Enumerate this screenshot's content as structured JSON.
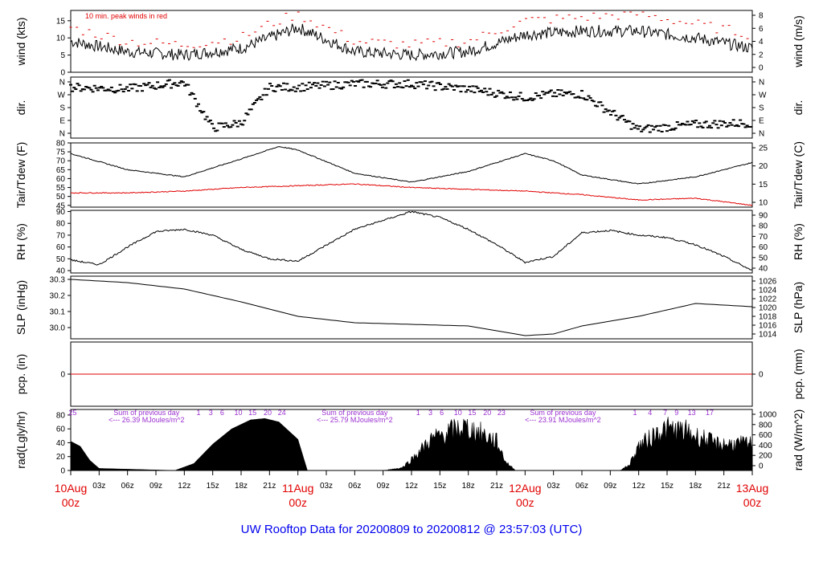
{
  "footer_title": "UW Rooftop Data for 20200809  to  20200812 @ 23:57:03  (UTC)",
  "colors": {
    "red": "#e00000",
    "purple": "#9b30d0",
    "blue": "#0000ee",
    "black": "#000000"
  },
  "x_axis": {
    "minor_ticks": [
      "03z",
      "06z",
      "09z",
      "12z",
      "15z",
      "18z",
      "21z",
      "03z",
      "06z",
      "09z",
      "12z",
      "15z",
      "18z",
      "21z",
      "03z",
      "06z",
      "09z",
      "12z",
      "15z",
      "18z",
      "21z"
    ],
    "day_labels": [
      [
        "10Aug",
        "00z"
      ],
      [
        "11Aug",
        "00z"
      ],
      [
        "12Aug",
        "00z"
      ],
      [
        "13Aug",
        "00z"
      ]
    ]
  },
  "chart_data": [
    {
      "type": "line",
      "panel": "wind",
      "ylabel_left": "wind (kts)",
      "ylabel_right": "wind (m/s)",
      "left_ticks": [
        "0",
        "5",
        "10",
        "15"
      ],
      "right_ticks": [
        "0",
        "2",
        "4",
        "6",
        "8"
      ],
      "ylim": [
        0,
        18
      ],
      "annotation": "10 min. peak winds in red",
      "series": [
        {
          "name": "wind",
          "x": [
            0,
            6,
            12,
            15,
            18,
            21,
            24,
            30,
            36,
            42,
            48,
            54,
            60,
            66,
            72
          ],
          "y": [
            9,
            6,
            5,
            6,
            7,
            10,
            13,
            6,
            5,
            6,
            11,
            12,
            12,
            10,
            7
          ]
        },
        {
          "name": "10 min. peak winds",
          "x": [
            0,
            6,
            12,
            15,
            18,
            21,
            24,
            30,
            36,
            42,
            48,
            54,
            60,
            66,
            72
          ],
          "y": [
            13,
            9,
            8,
            9,
            10,
            14,
            17,
            9,
            8,
            9,
            15,
            16,
            17,
            14,
            11
          ]
        }
      ]
    },
    {
      "type": "scatter",
      "panel": "dir",
      "ylabel_left": "dir.",
      "ylabel_right": "dir.",
      "left_ticks": [
        "N",
        "E",
        "S",
        "W",
        "N"
      ],
      "right_ticks": [
        "N",
        "E",
        "S",
        "W",
        "N"
      ],
      "ylim": [
        0,
        360
      ],
      "series": [
        {
          "name": "dir",
          "x": [
            0,
            6,
            12,
            15,
            18,
            21,
            24,
            30,
            36,
            42,
            48,
            51,
            54,
            60,
            66,
            72
          ],
          "y": [
            300,
            290,
            330,
            60,
            90,
            300,
            300,
            320,
            320,
            290,
            240,
            260,
            260,
            50,
            80,
            90
          ]
        }
      ]
    },
    {
      "type": "line",
      "panel": "temp",
      "ylabel_left": "Tair/Tdew (F)",
      "ylabel_right": "Tair/Tdew (C)",
      "left_ticks": [
        "45",
        "50",
        "55",
        "60",
        "65",
        "70",
        "75",
        "80"
      ],
      "right_ticks": [
        "10",
        "15",
        "20",
        "25"
      ],
      "ylim": [
        44,
        80
      ],
      "series": [
        {
          "name": "Tair",
          "x": [
            0,
            6,
            12,
            18,
            22,
            24,
            30,
            36,
            42,
            48,
            51,
            54,
            60,
            66,
            72
          ],
          "y": [
            74,
            65,
            61,
            71,
            78,
            76,
            63,
            58,
            64,
            74,
            70,
            62,
            57,
            61,
            69
          ]
        },
        {
          "name": "Tdew",
          "x": [
            0,
            6,
            12,
            18,
            24,
            30,
            36,
            42,
            48,
            54,
            60,
            66,
            72
          ],
          "y": [
            52,
            52,
            53,
            55,
            56,
            57,
            55,
            54,
            53,
            51,
            48,
            49,
            45
          ]
        }
      ]
    },
    {
      "type": "line",
      "panel": "rh",
      "ylabel_left": "RH (%)",
      "ylabel_right": "RH (%)",
      "left_ticks": [
        "40",
        "50",
        "60",
        "70",
        "80",
        "90"
      ],
      "right_ticks": [
        "40",
        "50",
        "60",
        "70",
        "80",
        "90"
      ],
      "ylim": [
        38,
        91
      ],
      "series": [
        {
          "name": "RH",
          "x": [
            0,
            3,
            6,
            9,
            12,
            15,
            18,
            21,
            24,
            30,
            36,
            39,
            42,
            45,
            48,
            51,
            54,
            57,
            60,
            63,
            66,
            69,
            72
          ],
          "y": [
            49,
            45,
            60,
            73,
            75,
            70,
            58,
            50,
            48,
            75,
            90,
            85,
            75,
            62,
            47,
            52,
            72,
            74,
            70,
            68,
            62,
            52,
            40
          ]
        }
      ]
    },
    {
      "type": "line",
      "panel": "slp",
      "ylabel_left": "SLP (inHg)",
      "ylabel_right": "SLP (hPa)",
      "left_ticks": [
        "30.0",
        "30.1",
        "30.2",
        "30.3"
      ],
      "right_ticks": [
        "1014",
        "1016",
        "1018",
        "1020",
        "1022",
        "1024",
        "1026"
      ],
      "ylim": [
        29.93,
        30.32
      ],
      "series": [
        {
          "name": "SLP",
          "x": [
            0,
            6,
            12,
            18,
            24,
            30,
            36,
            42,
            48,
            51,
            54,
            60,
            66,
            72
          ],
          "y": [
            30.3,
            30.28,
            30.24,
            30.16,
            30.07,
            30.03,
            30.02,
            30.01,
            29.95,
            29.96,
            30.01,
            30.07,
            30.15,
            30.13
          ]
        }
      ]
    },
    {
      "type": "line",
      "panel": "pcp",
      "ylabel_left": "pcp. (in)",
      "ylabel_right": "pcp. (mm)",
      "left_ticks": [
        "0"
      ],
      "right_ticks": [
        "0"
      ],
      "ylim": [
        -1,
        1
      ],
      "series": [
        {
          "name": "pcp",
          "x": [
            0,
            72
          ],
          "y": [
            0,
            0
          ]
        }
      ]
    },
    {
      "type": "area",
      "panel": "rad",
      "ylabel_left": "rad(Lgly/hr)",
      "ylabel_right": "rad (W/m^2)",
      "left_ticks": [
        "0",
        "20",
        "40",
        "60",
        "80"
      ],
      "right_ticks": [
        "0",
        "200",
        "400",
        "600",
        "800",
        "1000"
      ],
      "ylim": [
        0,
        88
      ],
      "annotations": [
        {
          "text": "25",
          "x": 0.2
        },
        {
          "text": "Sum of previous day",
          "x": 8
        },
        {
          "text": "<--- 26.39 MJoules/m^2",
          "x": 8
        },
        {
          "text": "1",
          "x": 13.5
        },
        {
          "text": "3",
          "x": 14.8
        },
        {
          "text": "6",
          "x": 16
        },
        {
          "text": "10",
          "x": 17.7
        },
        {
          "text": "15",
          "x": 19.2
        },
        {
          "text": "20",
          "x": 20.8
        },
        {
          "text": "24",
          "x": 22.3
        },
        {
          "text": "Sum of previous day",
          "x": 30
        },
        {
          "text": "<--- 25.79 MJoules/m^2",
          "x": 30
        },
        {
          "text": "1",
          "x": 36.7
        },
        {
          "text": "3",
          "x": 38
        },
        {
          "text": "6",
          "x": 39.2
        },
        {
          "text": "10",
          "x": 40.9
        },
        {
          "text": "15",
          "x": 42.4
        },
        {
          "text": "20",
          "x": 44
        },
        {
          "text": "23",
          "x": 45.5
        },
        {
          "text": "Sum of previous day",
          "x": 52
        },
        {
          "text": "<--- 23.91 MJoules/m^2",
          "x": 52
        },
        {
          "text": "1",
          "x": 59.6
        },
        {
          "text": "4",
          "x": 61.2
        },
        {
          "text": "7",
          "x": 62.8
        },
        {
          "text": "9",
          "x": 64
        },
        {
          "text": "13",
          "x": 65.6
        },
        {
          "text": "17",
          "x": 67.5
        }
      ],
      "series": [
        {
          "name": "rad",
          "x": [
            0,
            1,
            2,
            3,
            11,
            13,
            15,
            17,
            19,
            20.5,
            22,
            24,
            25,
            33,
            35,
            36,
            38,
            40,
            41.5,
            43,
            45,
            46,
            47,
            58,
            59,
            60,
            61,
            62,
            63,
            64,
            65,
            66,
            67,
            68
          ],
          "y": [
            42,
            35,
            15,
            3,
            0,
            10,
            38,
            60,
            73,
            75,
            70,
            45,
            0,
            0,
            5,
            20,
            55,
            70,
            78,
            70,
            52,
            15,
            0,
            0,
            10,
            45,
            55,
            70,
            75,
            73,
            70,
            62,
            58,
            48
          ]
        }
      ]
    }
  ]
}
